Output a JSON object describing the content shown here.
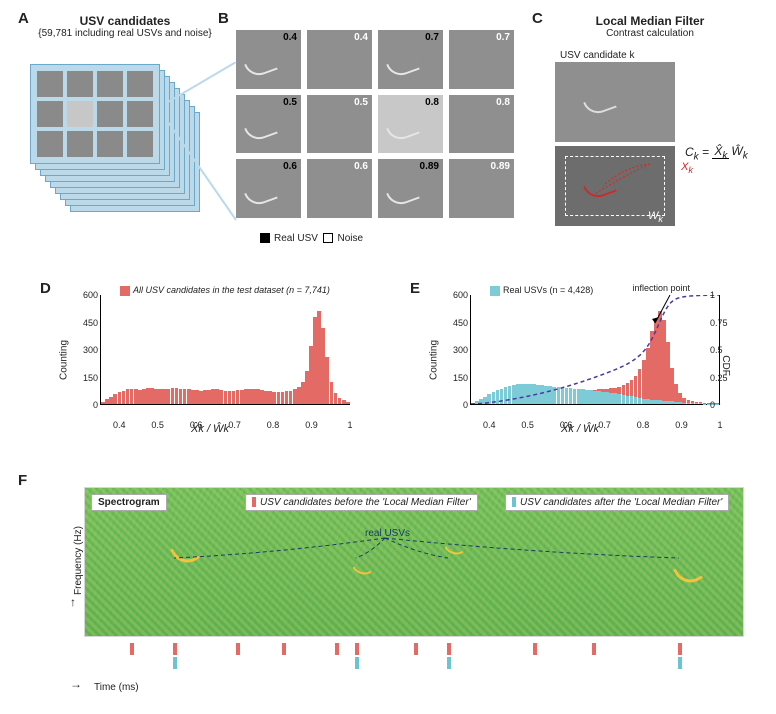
{
  "labels": {
    "A": "A",
    "B": "B",
    "C": "C",
    "D": "D",
    "E": "E",
    "F": "F"
  },
  "panelA": {
    "title": "USV candidates",
    "subtitle": "{59,781 including real USVs and noise}",
    "num_sheets": 9,
    "sheet_fill": "#bcd9ea",
    "sheet_border": "#6aa9cb",
    "thumb_fill": "#8a8a8a",
    "thumb_highlight": "#c7c7c7"
  },
  "panelB": {
    "cells": [
      {
        "val": "0.4",
        "color": "black",
        "curve": true
      },
      {
        "val": "0.4",
        "color": "white"
      },
      {
        "val": "0.7",
        "color": "black",
        "curve": true
      },
      {
        "val": "0.7",
        "color": "white"
      },
      {
        "val": "0.5",
        "color": "black",
        "curve": true
      },
      {
        "val": "0.5",
        "color": "white"
      },
      {
        "val": "0.8",
        "color": "black",
        "bright": true,
        "curve": true
      },
      {
        "val": "0.8",
        "color": "white"
      },
      {
        "val": "0.6",
        "color": "black",
        "curve": true
      },
      {
        "val": "0.6",
        "color": "white"
      },
      {
        "val": "0.89",
        "color": "black",
        "curve": true
      },
      {
        "val": "0.89",
        "color": "white"
      }
    ],
    "legend": [
      {
        "label": "Real USV",
        "fill": "#000000"
      },
      {
        "label": "Noise",
        "fill": "#ffffff",
        "border": "#000"
      }
    ]
  },
  "panelC": {
    "title": "Local Median Filter",
    "subtitle": "Contrast calculation",
    "candidate_label": "USV candidate k",
    "Xk": "X",
    "Wk": "W",
    "Ck": "C",
    "Xk_color": "#cc2b2b"
  },
  "panelD": {
    "legend_label": "All USV candidates in the test dataset (n = 7,741)",
    "legend_color": "#e46a66",
    "ylabel": "Counting",
    "xlabel": "X̂k / Ŵk",
    "ylim": [
      0,
      600
    ],
    "yticks": [
      0,
      150,
      300,
      450,
      600
    ],
    "xlim": [
      0.35,
      1.0
    ],
    "xticks": [
      0.4,
      0.5,
      0.6,
      0.7,
      0.8,
      0.9,
      "1"
    ],
    "bars": [
      10,
      25,
      40,
      55,
      65,
      70,
      80,
      82,
      80,
      78,
      82,
      90,
      88,
      85,
      80,
      82,
      84,
      86,
      88,
      84,
      82,
      80,
      78,
      75,
      74,
      76,
      78,
      82,
      80,
      75,
      70,
      72,
      74,
      76,
      78,
      80,
      82,
      84,
      80,
      78,
      74,
      70,
      68,
      66,
      68,
      70,
      72,
      80,
      95,
      120,
      180,
      320,
      480,
      510,
      420,
      260,
      120,
      60,
      35,
      20,
      12
    ],
    "bar_color": "#e46a66"
  },
  "panelE": {
    "legend1": {
      "label": "Real USVs (n = 4,428)",
      "color": "#7ecbd8"
    },
    "inflection": "inflection point",
    "ylabel": "Counting",
    "ylabel2": "CDF",
    "xlabel": "X̂k / Ŵk",
    "ylim": [
      0,
      600
    ],
    "yticks": [
      0,
      150,
      300,
      450,
      600
    ],
    "ylim2": [
      0,
      1
    ],
    "yticks2": [
      0,
      0.25,
      0.5,
      0.75,
      1
    ],
    "xlim": [
      0.35,
      1.0
    ],
    "xticks": [
      0.4,
      0.5,
      0.6,
      0.7,
      0.8,
      0.9,
      "1"
    ],
    "bars_cyan": [
      5,
      15,
      25,
      40,
      55,
      65,
      75,
      85,
      95,
      100,
      105,
      108,
      110,
      112,
      110,
      108,
      105,
      102,
      100,
      98,
      95,
      92,
      90,
      88,
      86,
      84,
      82,
      80,
      78,
      75,
      72,
      70,
      68,
      65,
      62,
      58,
      54,
      50,
      46,
      42,
      38,
      34,
      30,
      26,
      24,
      22,
      20,
      18,
      16,
      14,
      12,
      10,
      8,
      6,
      5,
      4,
      3,
      2,
      2,
      1,
      1
    ],
    "bars_red": [
      3,
      8,
      12,
      18,
      22,
      26,
      30,
      32,
      34,
      36,
      38,
      40,
      42,
      44,
      46,
      48,
      50,
      52,
      54,
      56,
      58,
      60,
      62,
      64,
      66,
      68,
      70,
      72,
      74,
      76,
      78,
      80,
      82,
      84,
      86,
      90,
      96,
      104,
      116,
      132,
      156,
      190,
      240,
      310,
      400,
      470,
      510,
      460,
      340,
      200,
      110,
      60,
      35,
      22,
      16,
      12,
      9,
      7,
      5,
      4,
      3
    ],
    "cdf_color": "#4a3aa0"
  },
  "panelF": {
    "spec_label": "Spectrogram",
    "before_label": "USV candidates before the 'Local Median Filter'",
    "after_label": "USV candidates after the 'Local Median Filter'",
    "before_color": "#e46a66",
    "after_color": "#6cc4d1",
    "real_label": "real USVs",
    "ylabel": "Frequency (Hz)",
    "xlabel": "Time (ms)",
    "usv_positions": [
      0.135,
      0.41,
      0.55,
      0.9
    ],
    "before_ticks": [
      0.07,
      0.135,
      0.23,
      0.3,
      0.38,
      0.41,
      0.5,
      0.55,
      0.68,
      0.77,
      0.9
    ],
    "after_ticks": [
      0.135,
      0.41,
      0.55,
      0.9
    ],
    "spectro_bg": "#6fbf5a",
    "mark_color": "#f5c23c"
  }
}
